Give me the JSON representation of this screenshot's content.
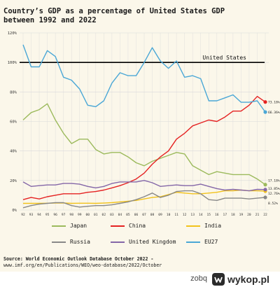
{
  "title_lines": [
    "Country’s GDP as a percentage of United States GDP",
    "between 1992 and 2022"
  ],
  "source": {
    "label": "Source:",
    "name": "World Economic Outlook Database October 2022 -",
    "url": "www.imf.org/en/Publications/WEO/weo-database/2022/October"
  },
  "footer": {
    "username": "zobq",
    "logo_text": "wykop.pl"
  },
  "chart_data": {
    "type": "line",
    "title": "Country’s GDP as a percentage of United States GDP between 1992 and 2022",
    "xlabel": "",
    "ylabel": "",
    "x": [
      "92",
      "93",
      "94",
      "95",
      "96",
      "97",
      "98",
      "99",
      "00",
      "01",
      "02",
      "03",
      "04",
      "05",
      "06",
      "07",
      "08",
      "09",
      "10",
      "11",
      "12",
      "13",
      "14",
      "15",
      "16",
      "17",
      "18",
      "19",
      "20",
      "21",
      "22"
    ],
    "yticks": [
      "0%",
      "20%",
      "40%",
      "60%",
      "80%",
      "100%",
      "120%"
    ],
    "ylim": [
      0,
      120
    ],
    "grid": true,
    "reference_line": {
      "value": 100,
      "label": "United States",
      "color": "#000000"
    },
    "series": [
      {
        "name": "Japan",
        "color": "#9cba5c",
        "values": [
          61,
          66,
          68,
          72,
          61,
          52,
          45,
          48,
          48,
          41,
          38,
          39,
          39,
          36,
          32,
          30,
          33,
          35,
          37,
          39,
          38,
          30,
          27,
          24,
          26,
          25,
          24,
          24,
          24,
          21,
          17.18
        ]
      },
      {
        "name": "China",
        "color": "#e52222",
        "values": [
          7,
          8.5,
          7.5,
          9,
          10,
          11,
          11,
          11,
          12,
          12.5,
          13.5,
          15,
          16.5,
          18.5,
          21,
          25,
          31,
          36,
          40,
          48,
          52,
          57,
          59,
          61,
          60,
          63,
          67,
          67,
          71,
          77,
          73.18
        ]
      },
      {
        "name": "India",
        "color": "#f2c21b",
        "values": [
          4.5,
          4.5,
          4.5,
          4.6,
          4.7,
          4.8,
          4.5,
          4.6,
          4.6,
          4.5,
          4.7,
          5,
          5.5,
          6,
          6.5,
          7.5,
          8.5,
          9,
          10.5,
          12,
          11.5,
          11,
          11,
          11.5,
          12,
          13,
          13,
          13.5,
          13,
          13,
          12.76
        ]
      },
      {
        "name": "Russia",
        "color": "#888888",
        "values": [
          1.5,
          3,
          4,
          4.5,
          5,
          5,
          3,
          2,
          2.5,
          3,
          3,
          3.5,
          4.5,
          5.5,
          7,
          9,
          11.5,
          8.5,
          10,
          12.5,
          13,
          13,
          11,
          7,
          6.5,
          8,
          8,
          8,
          7.5,
          8,
          8.52
        ]
      },
      {
        "name": "United Kingdom",
        "color": "#8467a8",
        "values": [
          19,
          16,
          16.5,
          17,
          17,
          18,
          18,
          17.5,
          16,
          15,
          16,
          18,
          19,
          19,
          19,
          20,
          18.5,
          16,
          16.5,
          17,
          16.5,
          16.5,
          17.5,
          16,
          14.5,
          13.5,
          14,
          13.5,
          13,
          14,
          13.85
        ]
      },
      {
        "name": "EU27",
        "color": "#4aa7d6",
        "values": [
          112,
          97,
          97,
          108,
          104,
          90,
          88,
          82,
          71,
          70,
          74,
          86,
          93,
          91,
          91,
          100,
          110,
          101,
          96,
          101,
          90,
          91,
          89,
          74,
          74,
          76,
          78,
          73,
          73,
          74,
          66.36
        ]
      }
    ],
    "end_labels": [
      "73.18%",
      "66.36%",
      "17.18%",
      "13.85%",
      "12.76%",
      "8.52%"
    ],
    "legend_placement": "bottom",
    "legend_order": [
      "Japan",
      "China",
      "India",
      "Russia",
      "United Kingdom",
      "EU27"
    ],
    "background": "#fbf7ea",
    "grid_color": "#d9d9d9"
  }
}
